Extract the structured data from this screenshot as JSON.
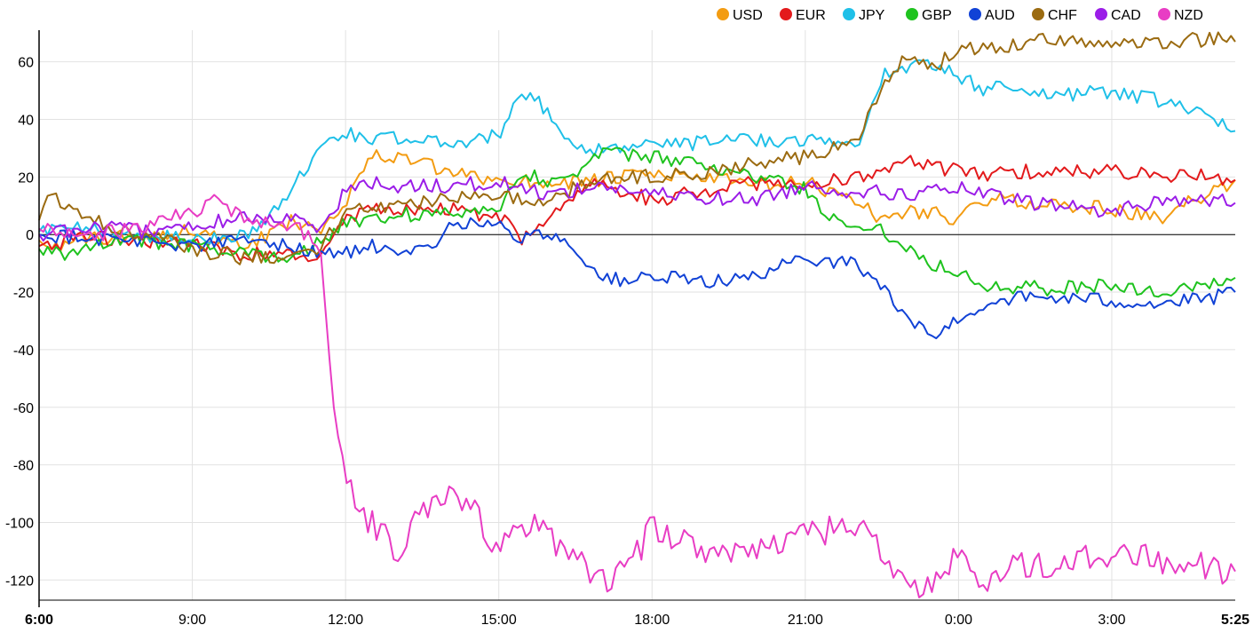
{
  "chart_data": {
    "type": "line",
    "title": "",
    "xlabel": "",
    "ylabel": "",
    "ylim": [
      -127,
      71
    ],
    "y_ticks": [
      60,
      40,
      20,
      0,
      -20,
      -40,
      -60,
      -80,
      -100,
      -120
    ],
    "x_ticks": [
      "6:00",
      "9:00",
      "12:00",
      "15:00",
      "18:00",
      "21:00",
      "0:00",
      "3:00",
      "5:25"
    ],
    "x_tick_hours": [
      0,
      3,
      6,
      9,
      12,
      15,
      18,
      21,
      23.4167
    ],
    "x_range_hours": [
      0,
      23.4167
    ],
    "bold_ticks": [
      "6:00",
      "5:25"
    ],
    "grid": true,
    "legend": "top-right",
    "series": [
      {
        "name": "USD",
        "color": "#f39c12",
        "points": [
          [
            0,
            -2
          ],
          [
            0.5,
            -4
          ],
          [
            1,
            -1
          ],
          [
            2,
            -1
          ],
          [
            3,
            2
          ],
          [
            4,
            -5
          ],
          [
            5,
            5
          ],
          [
            5.5,
            2
          ],
          [
            6,
            12
          ],
          [
            6.5,
            27
          ],
          [
            7,
            27
          ],
          [
            7.5,
            25
          ],
          [
            8,
            21
          ],
          [
            9,
            19
          ],
          [
            10,
            18
          ],
          [
            11,
            19
          ],
          [
            12,
            21
          ],
          [
            13,
            20
          ],
          [
            14,
            17
          ],
          [
            15,
            18
          ],
          [
            16,
            12
          ],
          [
            16.5,
            5
          ],
          [
            17,
            8
          ],
          [
            17.5,
            8
          ],
          [
            18,
            5
          ],
          [
            18.5,
            12
          ],
          [
            19,
            12
          ],
          [
            20,
            10
          ],
          [
            21,
            9
          ],
          [
            22,
            5
          ],
          [
            22.5,
            11
          ],
          [
            23,
            15
          ],
          [
            23.4,
            19
          ]
        ]
      },
      {
        "name": "EUR",
        "color": "#e31a1c",
        "points": [
          [
            0,
            -4
          ],
          [
            1,
            -1
          ],
          [
            2,
            -2
          ],
          [
            3,
            -3
          ],
          [
            4,
            -7
          ],
          [
            5,
            -7
          ],
          [
            5.25,
            -10
          ],
          [
            5.5,
            -7
          ],
          [
            6,
            5
          ],
          [
            6.5,
            8
          ],
          [
            7,
            9
          ],
          [
            8,
            9
          ],
          [
            9,
            6
          ],
          [
            9.5,
            -2
          ],
          [
            10,
            8
          ],
          [
            10.5,
            15
          ],
          [
            11,
            18
          ],
          [
            12,
            12
          ],
          [
            13,
            15
          ],
          [
            14,
            18
          ],
          [
            15,
            17
          ],
          [
            16,
            20
          ],
          [
            17,
            25
          ],
          [
            18,
            22
          ],
          [
            18.5,
            20
          ],
          [
            19,
            22
          ],
          [
            20,
            22
          ],
          [
            21,
            22
          ],
          [
            22,
            21
          ],
          [
            23,
            20
          ],
          [
            23.4,
            19
          ]
        ]
      },
      {
        "name": "JPY",
        "color": "#1fc0e8",
        "points": [
          [
            0,
            1
          ],
          [
            1,
            2
          ],
          [
            2,
            0
          ],
          [
            3,
            -2
          ],
          [
            4,
            0
          ],
          [
            4.5,
            5
          ],
          [
            5,
            18
          ],
          [
            5.5,
            30
          ],
          [
            6,
            35
          ],
          [
            7,
            33
          ],
          [
            8,
            32
          ],
          [
            9,
            34
          ],
          [
            9.25,
            44
          ],
          [
            9.5,
            50
          ],
          [
            10,
            42
          ],
          [
            10.5,
            30
          ],
          [
            11,
            30
          ],
          [
            12,
            31
          ],
          [
            13,
            32
          ],
          [
            14,
            33
          ],
          [
            15,
            33
          ],
          [
            16,
            31
          ],
          [
            16.5,
            55
          ],
          [
            17,
            58
          ],
          [
            17.5,
            60
          ],
          [
            18,
            55
          ],
          [
            18.5,
            50
          ],
          [
            19,
            52
          ],
          [
            20,
            48
          ],
          [
            21,
            50
          ],
          [
            22,
            46
          ],
          [
            23,
            40
          ],
          [
            23.4,
            36
          ]
        ]
      },
      {
        "name": "GBP",
        "color": "#1fc31f",
        "points": [
          [
            0,
            -5
          ],
          [
            0.5,
            -7
          ],
          [
            1,
            -3
          ],
          [
            2,
            -2
          ],
          [
            3,
            -4
          ],
          [
            4,
            -7
          ],
          [
            5,
            -7
          ],
          [
            5.5,
            -3
          ],
          [
            6,
            4
          ],
          [
            6.5,
            6
          ],
          [
            7,
            7
          ],
          [
            8,
            7
          ],
          [
            9,
            10
          ],
          [
            9.5,
            22
          ],
          [
            10,
            18
          ],
          [
            10.5,
            22
          ],
          [
            11,
            28
          ],
          [
            12,
            27
          ],
          [
            13,
            24
          ],
          [
            14,
            20
          ],
          [
            15,
            16
          ],
          [
            15.5,
            5
          ],
          [
            16,
            3
          ],
          [
            16.5,
            2
          ],
          [
            17,
            -5
          ],
          [
            17.5,
            -10
          ],
          [
            18,
            -13
          ],
          [
            18.5,
            -17
          ],
          [
            19,
            -18
          ],
          [
            20,
            -19
          ],
          [
            21,
            -17
          ],
          [
            22,
            -21
          ],
          [
            23,
            -17
          ],
          [
            23.4,
            -15
          ]
        ]
      },
      {
        "name": "AUD",
        "color": "#1142d6",
        "points": [
          [
            0,
            0
          ],
          [
            1,
            -1
          ],
          [
            2,
            -2
          ],
          [
            3,
            -4
          ],
          [
            4,
            -2
          ],
          [
            5,
            -4
          ],
          [
            5.5,
            -7
          ],
          [
            6,
            -6
          ],
          [
            6.5,
            -4
          ],
          [
            7,
            -8
          ],
          [
            7.5,
            -6
          ],
          [
            8,
            2
          ],
          [
            8.5,
            5
          ],
          [
            9,
            3
          ],
          [
            9.5,
            -2
          ],
          [
            10,
            1
          ],
          [
            10.5,
            -5
          ],
          [
            11,
            -15
          ],
          [
            11.5,
            -16
          ],
          [
            12,
            -15
          ],
          [
            13,
            -16
          ],
          [
            14,
            -15
          ],
          [
            15,
            -8
          ],
          [
            16,
            -10
          ],
          [
            16.5,
            -18
          ],
          [
            17,
            -30
          ],
          [
            17.5,
            -35
          ],
          [
            18,
            -30
          ],
          [
            18.5,
            -24
          ],
          [
            19,
            -22
          ],
          [
            20,
            -22
          ],
          [
            21,
            -23
          ],
          [
            22,
            -24
          ],
          [
            23,
            -22
          ],
          [
            23.4,
            -20
          ]
        ]
      },
      {
        "name": "CHF",
        "color": "#9b6b11",
        "points": [
          [
            0,
            5
          ],
          [
            0.25,
            15
          ],
          [
            0.5,
            10
          ],
          [
            1,
            5
          ],
          [
            2,
            0
          ],
          [
            3,
            -5
          ],
          [
            4,
            -8
          ],
          [
            5,
            -7
          ],
          [
            5.5,
            -5
          ],
          [
            6,
            8
          ],
          [
            7,
            10
          ],
          [
            8,
            12
          ],
          [
            9,
            15
          ],
          [
            9.5,
            12
          ],
          [
            10,
            12
          ],
          [
            11,
            20
          ],
          [
            12,
            20
          ],
          [
            13,
            21
          ],
          [
            14,
            25
          ],
          [
            15,
            27
          ],
          [
            16,
            33
          ],
          [
            16.5,
            50
          ],
          [
            17,
            62
          ],
          [
            17.5,
            58
          ],
          [
            18,
            64
          ],
          [
            19,
            66
          ],
          [
            20,
            68
          ],
          [
            21,
            66
          ],
          [
            22,
            67
          ],
          [
            23,
            68
          ],
          [
            23.4,
            67
          ]
        ]
      },
      {
        "name": "CAD",
        "color": "#9b1de8",
        "points": [
          [
            0,
            0
          ],
          [
            1,
            3
          ],
          [
            2,
            1
          ],
          [
            3,
            3
          ],
          [
            4,
            6
          ],
          [
            5,
            5
          ],
          [
            5.5,
            3
          ],
          [
            6,
            15
          ],
          [
            6.5,
            18
          ],
          [
            7,
            17
          ],
          [
            8,
            17
          ],
          [
            9,
            18
          ],
          [
            10,
            14
          ],
          [
            11,
            17
          ],
          [
            12,
            14
          ],
          [
            13,
            13
          ],
          [
            14,
            12
          ],
          [
            15,
            17
          ],
          [
            16,
            15
          ],
          [
            17,
            14
          ],
          [
            18,
            16
          ],
          [
            19,
            12
          ],
          [
            20,
            10
          ],
          [
            21,
            8
          ],
          [
            22,
            12
          ],
          [
            23,
            12
          ],
          [
            23.4,
            11
          ]
        ]
      },
      {
        "name": "NZD",
        "color": "#e83dc4",
        "points": [
          [
            0,
            2
          ],
          [
            1,
            0
          ],
          [
            2,
            2
          ],
          [
            3,
            8
          ],
          [
            3.5,
            12
          ],
          [
            4,
            6
          ],
          [
            5,
            3
          ],
          [
            5.5,
            -3
          ],
          [
            5.75,
            -60
          ],
          [
            6,
            -85
          ],
          [
            6.25,
            -97
          ],
          [
            6.5,
            -100
          ],
          [
            7,
            -110
          ],
          [
            7.5,
            -95
          ],
          [
            8,
            -92
          ],
          [
            8.5,
            -95
          ],
          [
            9,
            -110
          ],
          [
            9.5,
            -100
          ],
          [
            10,
            -105
          ],
          [
            10.5,
            -112
          ],
          [
            11,
            -120
          ],
          [
            11.5,
            -117
          ],
          [
            12,
            -102
          ],
          [
            13,
            -110
          ],
          [
            14,
            -108
          ],
          [
            15,
            -105
          ],
          [
            16,
            -100
          ],
          [
            16.5,
            -110
          ],
          [
            17,
            -122
          ],
          [
            17.5,
            -122
          ],
          [
            18,
            -112
          ],
          [
            18.5,
            -120
          ],
          [
            19,
            -115
          ],
          [
            20,
            -114
          ],
          [
            21,
            -112
          ],
          [
            22,
            -113
          ],
          [
            23,
            -116
          ],
          [
            23.4,
            -117
          ]
        ]
      }
    ]
  }
}
